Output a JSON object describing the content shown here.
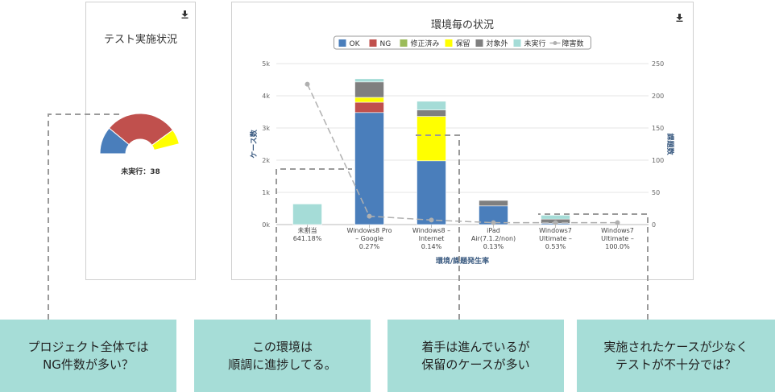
{
  "gauge": {
    "title": "テスト実施状況",
    "caption": "未実行：38",
    "segments": [
      {
        "status": "OK",
        "fraction": 0.22,
        "color": "#4a7ebb"
      },
      {
        "status": "NG",
        "fraction": 0.58,
        "color": "#c0504d"
      },
      {
        "status": "保留",
        "fraction": 0.12,
        "color": "#ffff00"
      }
    ]
  },
  "chart_data": {
    "type": "bar",
    "title": "環境毎の状況",
    "xlabel": "環境/課題発生率",
    "ylabel": "ケース数",
    "y2label": "課題数",
    "ylim": [
      0,
      5000
    ],
    "y2lim": [
      0,
      250
    ],
    "yticks": [
      "0k",
      "1k",
      "2k",
      "3k",
      "4k",
      "5k"
    ],
    "y2ticks": [
      "0",
      "50",
      "100",
      "150",
      "200",
      "250"
    ],
    "categories": [
      [
        "未割当",
        "641.18%"
      ],
      [
        "Windows8 Pro",
        "– Google",
        "0.27%"
      ],
      [
        "Windows8 –",
        "Internet",
        "0.14%"
      ],
      [
        "iPad",
        "Air(7.1.2/non)",
        "0.13%"
      ],
      [
        "Windows7",
        "Ultimate –",
        "0.53%"
      ],
      [
        "Windows7",
        "Ultimate –",
        "100.0%"
      ]
    ],
    "series": [
      {
        "name": "OK",
        "color": "#4a7ebb",
        "values": [
          0,
          3480,
          1980,
          580,
          40,
          0
        ]
      },
      {
        "name": "NG",
        "color": "#c0504d",
        "values": [
          0,
          320,
          0,
          0,
          0,
          0
        ]
      },
      {
        "name": "修正済み",
        "color": "#9bbb59",
        "values": [
          0,
          0,
          0,
          0,
          0,
          0
        ]
      },
      {
        "name": "保留",
        "color": "#ffff00",
        "values": [
          0,
          150,
          1380,
          0,
          0,
          0
        ]
      },
      {
        "name": "対象外",
        "color": "#7f7f7f",
        "values": [
          0,
          480,
          200,
          170,
          130,
          0
        ]
      },
      {
        "name": "未実行",
        "color": "#a5dcd7",
        "values": [
          640,
          100,
          270,
          0,
          120,
          0
        ]
      }
    ],
    "line": {
      "name": "障害数",
      "color": "#b0b0b0",
      "values": [
        218,
        13,
        7,
        3,
        3,
        3
      ]
    },
    "legend_position": "top"
  },
  "callouts": [
    {
      "line1": "プロジェクト全体では",
      "line2": "NG件数が多い？"
    },
    {
      "line1": "この環境は",
      "line2": "順調に進捗してる。"
    },
    {
      "line1": "着手は進んでいるが",
      "line2": "保留のケースが多い"
    },
    {
      "line1": "実施されたケースが少なく",
      "line2": "テストが不十分では？"
    }
  ],
  "icons": {
    "download": "download-icon"
  }
}
